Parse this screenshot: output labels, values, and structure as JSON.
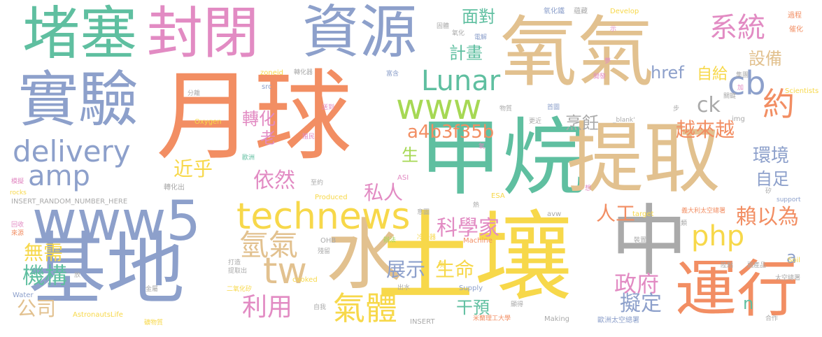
{
  "palette": {
    "salmon": "#F28E63",
    "teal": "#5FBFA0",
    "periwinkle": "#8DA0CB",
    "pink": "#E28BC3",
    "lime": "#A6D854",
    "yellow": "#F7D84A",
    "tan": "#E2C18F",
    "gray": "#AAAAAA"
  },
  "words": [
    {
      "text": "月球",
      "color": "salmon"
    },
    {
      "text": "氧氣",
      "color": "tan"
    },
    {
      "text": "甲烷",
      "color": "teal"
    },
    {
      "text": "提取",
      "color": "tan"
    },
    {
      "text": "土壤",
      "color": "yellow"
    },
    {
      "text": "基地",
      "color": "periwinkle"
    },
    {
      "text": "水",
      "color": "tan"
    },
    {
      "text": "中",
      "color": "gray"
    },
    {
      "text": "堵塞",
      "color": "teal"
    },
    {
      "text": "封閉",
      "color": "pink"
    },
    {
      "text": "資源",
      "color": "periwinkle"
    },
    {
      "text": "實驗",
      "color": "periwinkle"
    },
    {
      "text": "www5",
      "color": "periwinkle"
    },
    {
      "text": "運行",
      "color": "salmon"
    },
    {
      "text": "technews",
      "color": "yellow"
    },
    {
      "text": "www",
      "color": "lime"
    },
    {
      "text": "delivery",
      "color": "periwinkle"
    },
    {
      "text": "amp",
      "color": "periwinkle"
    },
    {
      "text": "Lunar",
      "color": "teal"
    },
    {
      "text": "系統",
      "color": "pink"
    },
    {
      "text": "cb",
      "color": "periwinkle"
    },
    {
      "text": "tw",
      "color": "tan"
    },
    {
      "text": "氫氣",
      "color": "tan"
    },
    {
      "text": "氣體",
      "color": "yellow"
    },
    {
      "text": "php",
      "color": "yellow"
    },
    {
      "text": "利用",
      "color": "pink"
    },
    {
      "text": "機構",
      "color": "teal"
    },
    {
      "text": "公司",
      "color": "tan"
    },
    {
      "text": "無需",
      "color": "yellow"
    },
    {
      "text": "展示",
      "color": "periwinkle"
    },
    {
      "text": "生命",
      "color": "yellow"
    },
    {
      "text": "科學家",
      "color": "pink"
    },
    {
      "text": "私人",
      "color": "pink"
    },
    {
      "text": "依然",
      "color": "pink"
    },
    {
      "text": "近乎",
      "color": "yellow"
    },
    {
      "text": "人工",
      "color": "salmon"
    },
    {
      "text": "政府",
      "color": "pink"
    },
    {
      "text": "擬定",
      "color": "periwinkle"
    },
    {
      "text": "賴以為",
      "color": "salmon"
    },
    {
      "text": "自足",
      "color": "periwinkle"
    },
    {
      "text": "環境",
      "color": "periwinkle"
    },
    {
      "text": "越來越",
      "color": "salmon"
    },
    {
      "text": "ck",
      "color": "gray"
    },
    {
      "text": "烹飪",
      "color": "gray"
    },
    {
      "text": "a4b3f35b",
      "color": "salmon"
    },
    {
      "text": "約",
      "color": "salmon"
    },
    {
      "text": "設備",
      "color": "tan"
    },
    {
      "text": "自給",
      "color": "yellow"
    },
    {
      "text": "href",
      "color": "periwinkle"
    },
    {
      "text": "計畫",
      "color": "teal"
    },
    {
      "text": "面對",
      "color": "teal"
    },
    {
      "text": "轉化",
      "color": "pink"
    },
    {
      "text": "老",
      "color": "pink"
    },
    {
      "text": "生",
      "color": "lime"
    },
    {
      "text": "干預",
      "color": "teal"
    },
    {
      "text": "a",
      "color": "periwinkle"
    },
    {
      "text": "n",
      "color": "teal"
    },
    {
      "text": "氧化鐵",
      "color": "periwinkle"
    },
    {
      "text": "蘊藏",
      "color": "gray"
    },
    {
      "text": "Develop",
      "color": "yellow"
    },
    {
      "text": "過程",
      "color": "salmon"
    },
    {
      "text": "催化",
      "color": "salmon"
    },
    {
      "text": "固體",
      "color": "gray"
    },
    {
      "text": "氧化",
      "color": "gray"
    },
    {
      "text": "電解",
      "color": "periwinkle"
    },
    {
      "text": "示",
      "color": "pink"
    },
    {
      "text": "zoneid",
      "color": "yellow"
    },
    {
      "text": "轉化器",
      "color": "gray"
    },
    {
      "text": "富含",
      "color": "periwinkle"
    },
    {
      "text": "src",
      "color": "periwinkle"
    },
    {
      "text": "分離",
      "color": "gray"
    },
    {
      "text": "送到",
      "color": "pink"
    },
    {
      "text": "Oxygen",
      "color": "yellow"
    },
    {
      "text": "殖民",
      "color": "pink"
    },
    {
      "text": "歐洲",
      "color": "teal"
    },
    {
      "text": "ASI",
      "color": "pink"
    },
    {
      "text": "模擬",
      "color": "pink"
    },
    {
      "text": "rocks",
      "color": "yellow"
    },
    {
      "text": "轉化出",
      "color": "gray"
    },
    {
      "text": "至約",
      "color": "gray"
    },
    {
      "text": "INSERT_RANDOM_NUMBER_HERE",
      "color": "gray"
    },
    {
      "text": "Produced",
      "color": "yellow"
    },
    {
      "text": "回收",
      "color": "pink"
    },
    {
      "text": "來源",
      "color": "salmon"
    },
    {
      "text": "Water",
      "color": "periwinkle"
    },
    {
      "text": "AstronautsLife",
      "color": "yellow"
    },
    {
      "text": "礦物質",
      "color": "yellow"
    },
    {
      "text": "OHB",
      "color": "gray"
    },
    {
      "text": "辦法",
      "color": "lime"
    },
    {
      "text": "冷凝器",
      "color": "yellow"
    },
    {
      "text": "Machine",
      "color": "salmon"
    },
    {
      "text": "打造",
      "color": "gray"
    },
    {
      "text": "提取出",
      "color": "gray"
    },
    {
      "text": "二氧化矽",
      "color": "yellow"
    },
    {
      "text": "殘留",
      "color": "gray"
    },
    {
      "text": "cooked",
      "color": "yellow"
    },
    {
      "text": "出水",
      "color": "gray"
    },
    {
      "text": "Supply",
      "color": "periwinkle"
    },
    {
      "text": "INSERT",
      "color": "gray"
    },
    {
      "text": "米蘭理工大學",
      "color": "salmon"
    },
    {
      "text": "顯得",
      "color": "gray"
    },
    {
      "text": "Making",
      "color": "gray"
    },
    {
      "text": "歐洲太空總署",
      "color": "periwinkle"
    },
    {
      "text": "合作",
      "color": "gray"
    },
    {
      "text": "放",
      "color": "gray"
    },
    {
      "text": "金屬",
      "color": "gray"
    },
    {
      "text": "自我",
      "color": "gray"
    },
    {
      "text": "ESA",
      "color": "yellow"
    },
    {
      "text": "avw",
      "color": "gray"
    },
    {
      "text": "target",
      "color": "yellow"
    },
    {
      "text": "義大利太空總署",
      "color": "salmon"
    },
    {
      "text": "support",
      "color": "periwinkle"
    },
    {
      "text": "人類",
      "color": "gray"
    },
    {
      "text": "裝置",
      "color": "gray"
    },
    {
      "text": "副產品",
      "color": "gray"
    },
    {
      "text": "陸點",
      "color": "gray"
    },
    {
      "text": "Soil",
      "color": "yellow"
    },
    {
      "text": "太空總署",
      "color": "gray"
    },
    {
      "text": "首圖",
      "color": "periwinkle"
    },
    {
      "text": "更近",
      "color": "gray"
    },
    {
      "text": "物質",
      "color": "gray"
    },
    {
      "text": "img",
      "color": "gray"
    },
    {
      "text": "_blank'",
      "color": "gray"
    },
    {
      "text": "步",
      "color": "gray"
    },
    {
      "text": "加",
      "color": "pink"
    },
    {
      "text": "Scientists",
      "color": "yellow"
    },
    {
      "text": "集團",
      "color": "gray"
    },
    {
      "text": "關鍵",
      "color": "gray"
    },
    {
      "text": "開發",
      "color": "pink"
    },
    {
      "text": "夢",
      "color": "pink"
    },
    {
      "text": "氧",
      "color": "pink"
    },
    {
      "text": "熱",
      "color": "gray"
    },
    {
      "text": "項",
      "color": "yellow"
    },
    {
      "text": "想",
      "color": "pink"
    },
    {
      "text": "矽",
      "color": "gray"
    },
    {
      "text": "意圖",
      "color": "gray"
    }
  ]
}
